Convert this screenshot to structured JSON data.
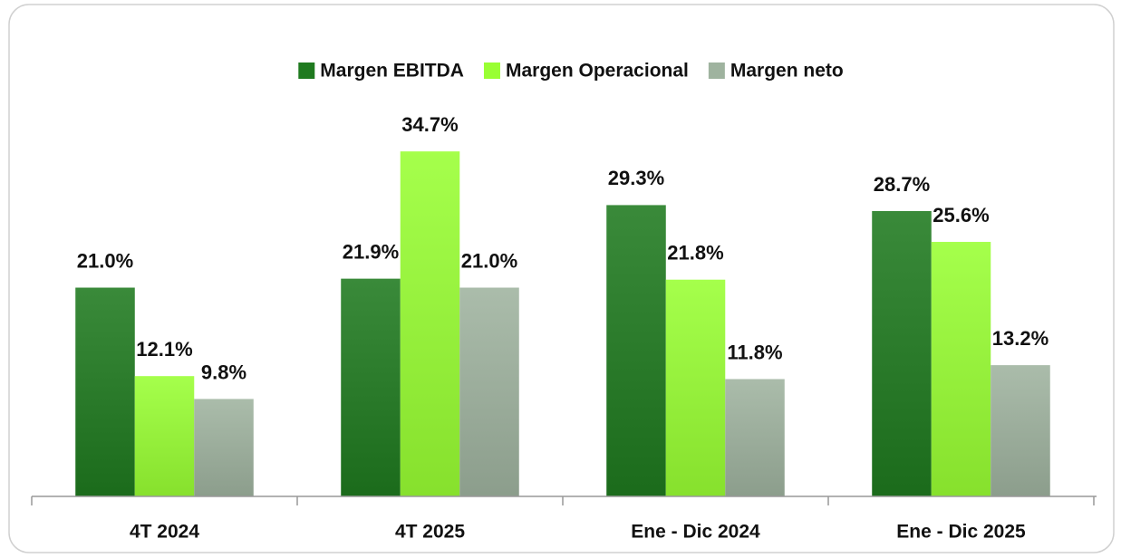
{
  "chart_data": {
    "type": "bar",
    "categories": [
      "4T 2024",
      "4T 2025",
      "Ene - Dic 2024",
      "Ene - Dic 2025"
    ],
    "series": [
      {
        "name": "Margen EBITDA",
        "color": "#1f7a1f",
        "values": [
          21.0,
          21.9,
          29.3,
          28.7
        ],
        "value_labels": [
          "21.0%",
          "21.9%",
          "29.3%",
          "28.7%"
        ]
      },
      {
        "name": "Margen Operacional",
        "color": "#99ff33",
        "values": [
          12.1,
          34.7,
          21.8,
          25.6
        ],
        "value_labels": [
          "12.1%",
          "34.7%",
          "21.8%",
          "25.6%"
        ]
      },
      {
        "name": "Margen neto",
        "color": "#9fb39f",
        "values": [
          9.8,
          21.0,
          11.8,
          13.2
        ],
        "value_labels": [
          "9.8%",
          "21.0%",
          "11.8%",
          "13.2%"
        ]
      }
    ],
    "ylim": [
      0,
      40
    ],
    "legend": "top"
  }
}
